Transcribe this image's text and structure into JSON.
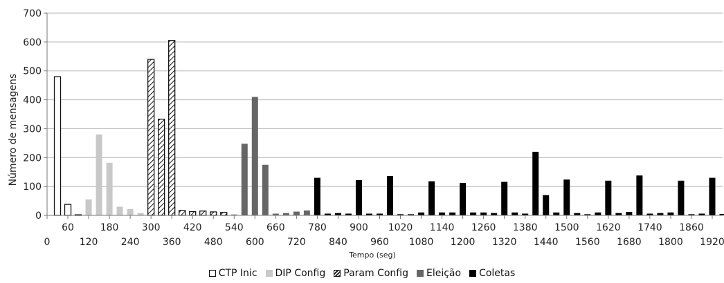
{
  "chart_data": {
    "type": "bar",
    "title": "",
    "xlabel": "Tempo (seg)",
    "ylabel": "Número de mensagens",
    "ylim": [
      0,
      700
    ],
    "yticks": [
      0,
      100,
      200,
      300,
      400,
      500,
      600,
      700
    ],
    "xticks": [
      0,
      60,
      120,
      180,
      240,
      300,
      360,
      420,
      480,
      540,
      600,
      660,
      720,
      780,
      840,
      900,
      960,
      1020,
      1080,
      1140,
      1200,
      1260,
      1320,
      1380,
      1440,
      1500,
      1560,
      1620,
      1680,
      1740,
      1800,
      1860,
      1920
    ],
    "grid": true,
    "legend_position": "bottom",
    "series": [
      {
        "name": "CTP Inic",
        "style": "white",
        "color": "#ffffff",
        "x": [
          30,
          60,
          90
        ],
        "values": [
          480,
          38,
          2
        ]
      },
      {
        "name": "DIP Config",
        "style": "light",
        "color": "#c8c8c8",
        "x": [
          120,
          150,
          180,
          210,
          240,
          270
        ],
        "values": [
          55,
          280,
          182,
          30,
          22,
          8
        ]
      },
      {
        "name": "Param Config",
        "style": "hatch",
        "color": "#ffffff",
        "x": [
          300,
          330,
          360,
          390,
          420,
          450,
          480,
          510
        ],
        "values": [
          540,
          333,
          605,
          17,
          13,
          15,
          12,
          10
        ]
      },
      {
        "name": "Eleição",
        "style": "dark",
        "color": "#666666",
        "x": [
          540,
          570,
          600,
          630,
          660,
          690,
          720,
          750
        ],
        "values": [
          3,
          248,
          410,
          175,
          6,
          8,
          13,
          17
        ]
      },
      {
        "name": "Coletas",
        "style": "black",
        "color": "#000000",
        "x": [
          780,
          810,
          840,
          870,
          900,
          930,
          960,
          990,
          1020,
          1050,
          1080,
          1110,
          1140,
          1170,
          1200,
          1230,
          1260,
          1290,
          1320,
          1350,
          1380,
          1410,
          1440,
          1470,
          1500,
          1530,
          1560,
          1590,
          1620,
          1650,
          1680,
          1710,
          1740,
          1770,
          1800,
          1830,
          1860,
          1890,
          1920,
          1950
        ],
        "values": [
          130,
          6,
          8,
          6,
          122,
          6,
          6,
          136,
          4,
          4,
          10,
          118,
          10,
          10,
          112,
          10,
          10,
          8,
          116,
          10,
          6,
          220,
          70,
          10,
          124,
          8,
          4,
          10,
          120,
          8,
          12,
          138,
          6,
          8,
          10,
          120,
          4,
          6,
          130,
          5
        ]
      }
    ]
  }
}
